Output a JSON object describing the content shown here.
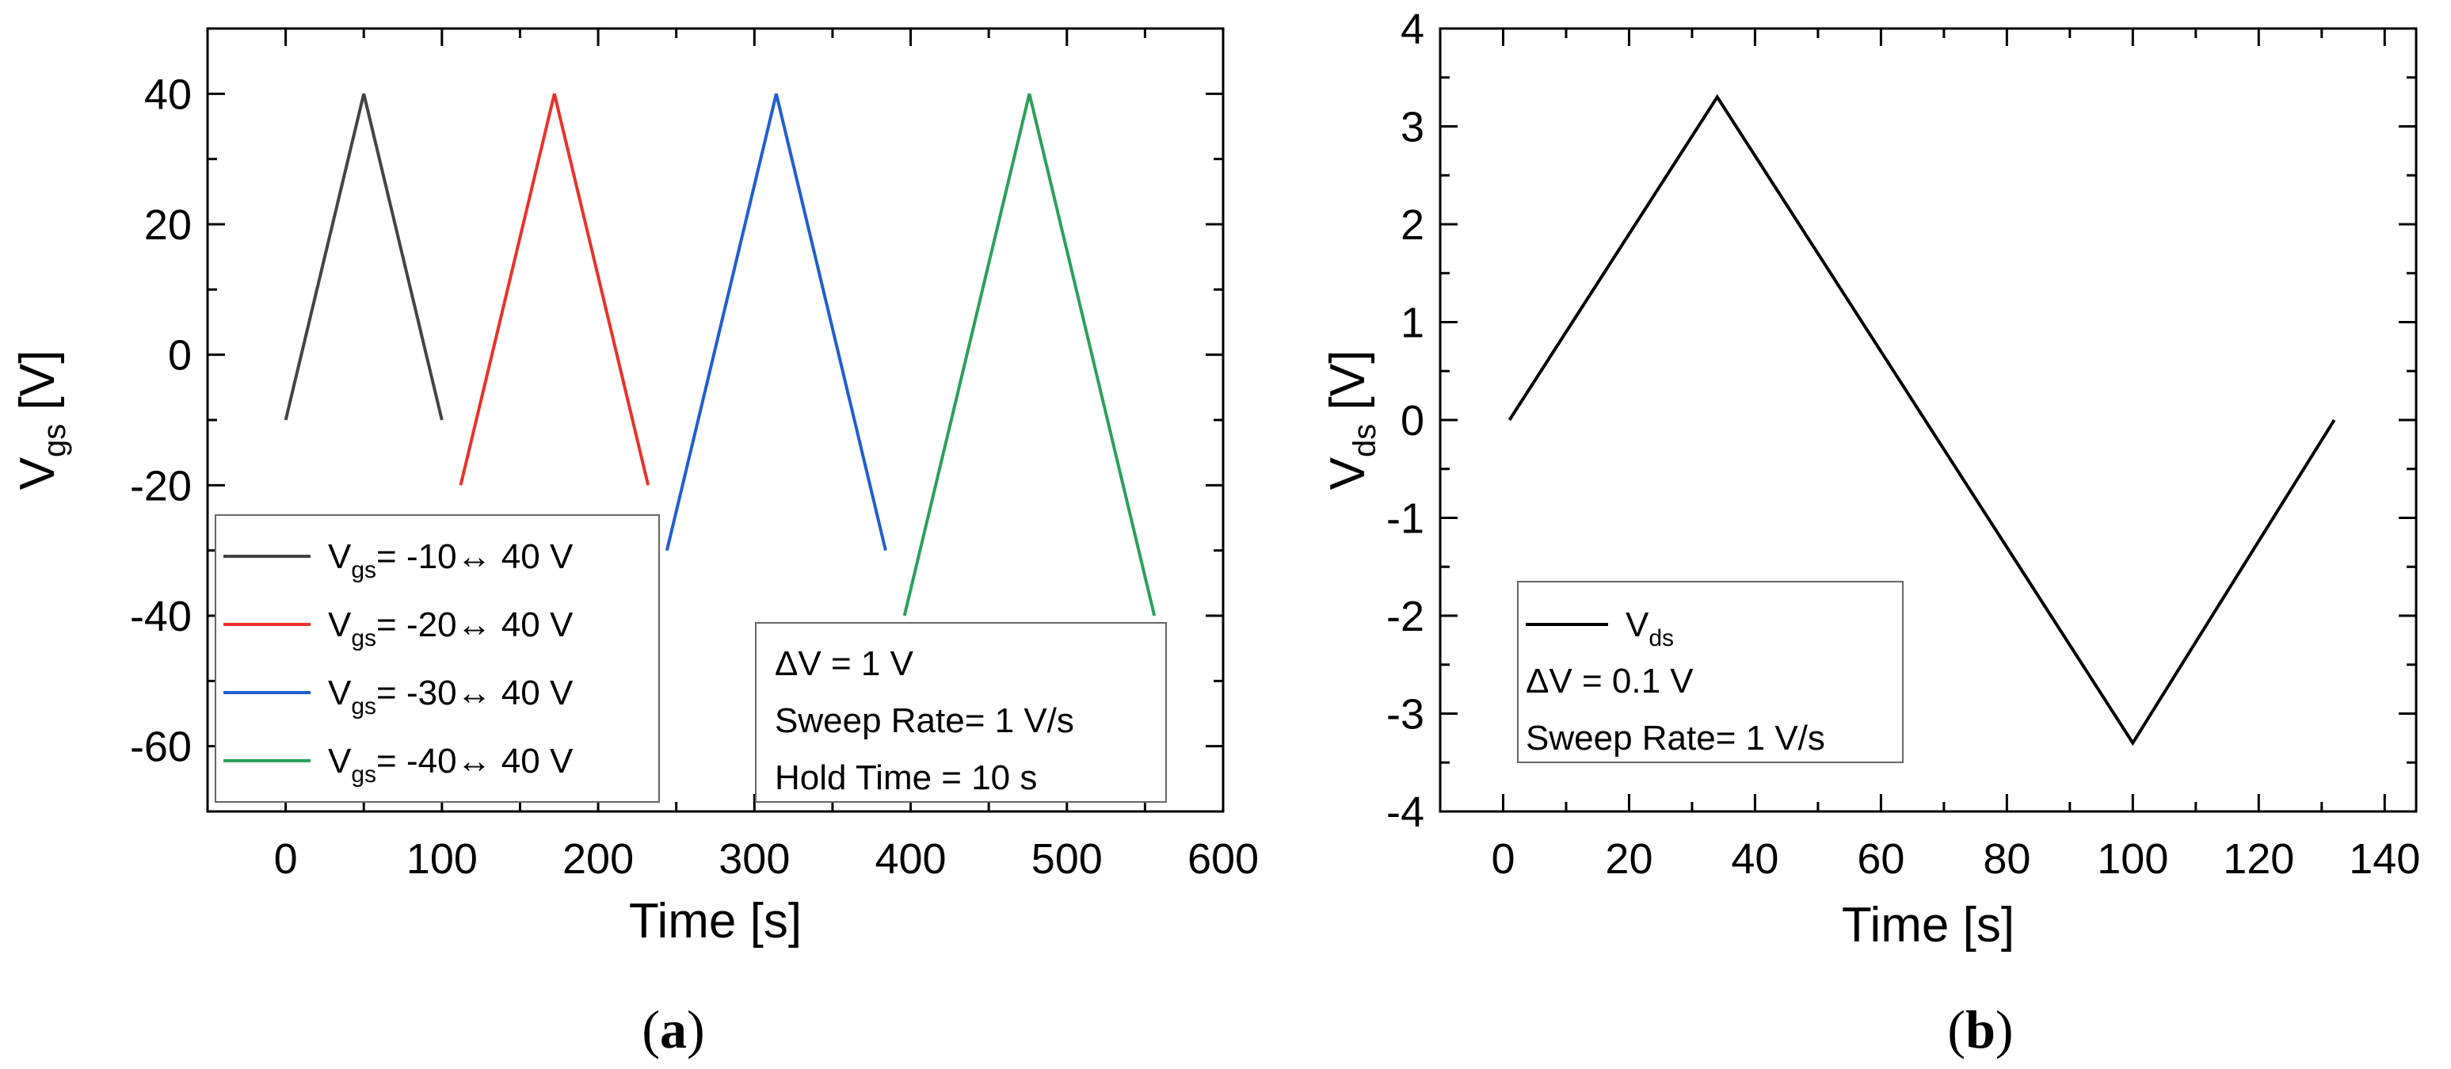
{
  "chart_data": [
    {
      "panel_label": "a",
      "type": "line",
      "xlabel": "Time [s]",
      "ylabel_main": "V",
      "ylabel_sub": "gs",
      "ylabel_unit": " [V]",
      "xlim": [
        -50,
        600
      ],
      "ylim": [
        -70,
        50
      ],
      "xticks": [
        0,
        100,
        200,
        300,
        400,
        500,
        600
      ],
      "yticks": [
        -60,
        -40,
        -20,
        0,
        20,
        40
      ],
      "series": [
        {
          "name": "Vgs= -10↔ 40 V",
          "legend_main": "V",
          "legend_sub": "gs",
          "legend_rest": "=  -10↔ 40 V",
          "color": "#444444",
          "x": [
            0,
            50,
            100
          ],
          "y": [
            -10,
            40,
            -10
          ]
        },
        {
          "name": "Vgs= -20↔ 40 V",
          "legend_main": "V",
          "legend_sub": "gs",
          "legend_rest": "=  -20↔ 40 V",
          "color": "#e8322a",
          "x": [
            112,
            172,
            232
          ],
          "y": [
            -20,
            40,
            -20
          ]
        },
        {
          "name": "Vgs= -30↔ 40 V",
          "legend_main": "V",
          "legend_sub": "gs",
          "legend_rest": "=  -30↔ 40 V",
          "color": "#1f5fcf",
          "x": [
            244,
            314,
            384
          ],
          "y": [
            -30,
            40,
            -30
          ]
        },
        {
          "name": "Vgs= -40↔ 40 V",
          "legend_main": "V",
          "legend_sub": "gs",
          "legend_rest": "=  -40↔ 40 V",
          "color": "#2ca05a",
          "x": [
            396,
            476,
            556
          ],
          "y": [
            -40,
            40,
            -40
          ]
        }
      ],
      "legend_position": "bottom-left",
      "annotation_position": "bottom-right",
      "annotations": [
        "ΔV = 1 V",
        "Sweep Rate= 1 V/s",
        "Hold Time = 10 s"
      ]
    },
    {
      "panel_label": "b",
      "type": "line",
      "xlabel": "Time [s]",
      "ylabel_main": "V",
      "ylabel_sub": "ds",
      "ylabel_unit": " [V]",
      "xlim": [
        -10,
        145
      ],
      "ylim": [
        -4,
        4
      ],
      "xticks": [
        0,
        20,
        40,
        60,
        80,
        100,
        120,
        140
      ],
      "yticks": [
        -4,
        -3,
        -2,
        -1,
        0,
        1,
        2,
        3,
        4
      ],
      "series": [
        {
          "name": "Vds",
          "legend_main": "V",
          "legend_sub": "ds",
          "legend_rest": "",
          "color": "#000000",
          "x": [
            1,
            34,
            100,
            132
          ],
          "y": [
            0,
            3.3,
            -3.3,
            0
          ]
        }
      ],
      "legend_position": "bottom-left",
      "annotation_position": "bottom-left",
      "annotations": [
        "ΔV = 0.1 V",
        "Sweep Rate= 1 V/s"
      ]
    }
  ]
}
